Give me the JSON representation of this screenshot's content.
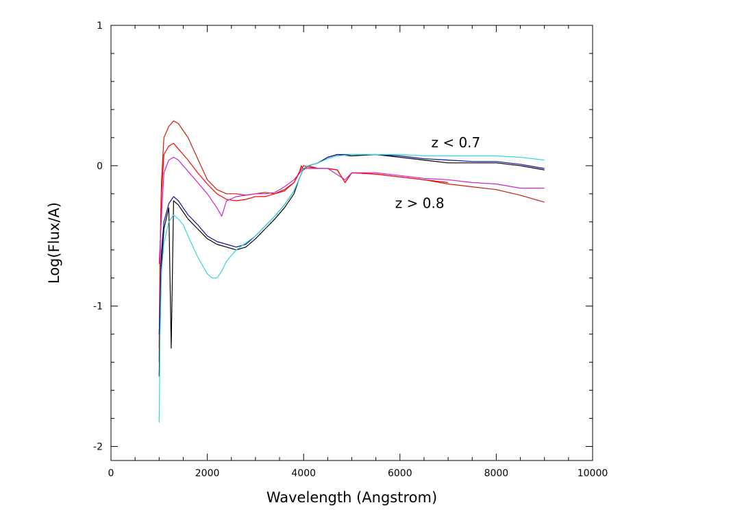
{
  "chart_data": {
    "type": "line",
    "title": "",
    "xlabel": "Wavelength (Angstrom)",
    "ylabel": "Log(Flux/A)",
    "xlim": [
      0,
      10000
    ],
    "ylim": [
      -2.1,
      1.0
    ],
    "x_ticks": [
      0,
      2000,
      4000,
      6000,
      8000,
      10000
    ],
    "x_tick_labels": [
      "0",
      "2000",
      "4000",
      "6000",
      "8000",
      "10000"
    ],
    "y_ticks": [
      -2,
      -1,
      0,
      1
    ],
    "y_tick_labels": [
      "-2",
      "-1",
      "0",
      "1"
    ],
    "grid": false,
    "legend": "none",
    "annotations": [
      {
        "text": "z < 0.7",
        "x": 6650,
        "y": 0.13
      },
      {
        "text": "z > 0.8",
        "x": 5900,
        "y": -0.3
      }
    ],
    "series": [
      {
        "color": "#c81e0a",
        "x": [
          1000,
          1020,
          1030,
          1050,
          1100,
          1200,
          1300,
          1400,
          1500,
          1600,
          1800,
          2000,
          2200,
          2400,
          2600,
          2800,
          3000,
          3200,
          3400,
          3600,
          3800,
          3900,
          3950,
          4000,
          4100,
          4300,
          4500,
          4700,
          4860,
          5000,
          5500,
          6000,
          6500,
          7000,
          7500,
          8000,
          8500,
          9000
        ],
        "y": [
          -1.4,
          -0.75,
          -0.4,
          -0.1,
          0.2,
          0.28,
          0.32,
          0.3,
          0.25,
          0.2,
          0.05,
          -0.1,
          -0.17,
          -0.2,
          -0.2,
          -0.21,
          -0.2,
          -0.19,
          -0.2,
          -0.17,
          -0.12,
          -0.06,
          0.0,
          -0.03,
          0.0,
          -0.02,
          -0.02,
          -0.03,
          -0.12,
          -0.05,
          -0.06,
          -0.08,
          -0.1,
          -0.13,
          -0.15,
          -0.17,
          -0.21,
          -0.26
        ]
      },
      {
        "color": "#ff0000",
        "x": [
          1000,
          1020,
          1050,
          1100,
          1200,
          1300,
          1400,
          1500,
          1600,
          1800,
          2000,
          2200,
          2400,
          2600,
          2800,
          3000,
          3200,
          3400,
          3600,
          3800,
          3900,
          4000,
          4100,
          4300,
          4500,
          4700,
          4860,
          5000,
          5500,
          6000,
          6500,
          7000
        ],
        "y": [
          -1.3,
          -0.6,
          -0.2,
          0.08,
          0.14,
          0.16,
          0.12,
          0.08,
          0.04,
          -0.05,
          -0.13,
          -0.2,
          -0.24,
          -0.25,
          -0.24,
          -0.22,
          -0.22,
          -0.2,
          -0.18,
          -0.12,
          -0.05,
          0.0,
          -0.01,
          -0.02,
          -0.02,
          -0.03,
          -0.12,
          -0.05,
          -0.06,
          -0.08,
          -0.1,
          -0.12
        ]
      },
      {
        "color": "#cc22cc",
        "x": [
          1000,
          1050,
          1100,
          1200,
          1300,
          1400,
          1500,
          1600,
          1800,
          2000,
          2200,
          2300,
          2400,
          2600,
          2800,
          3000,
          3200,
          3400,
          3600,
          3800,
          4000,
          4300,
          4500,
          4860,
          5000,
          5500,
          6000,
          6500,
          7000,
          7500,
          8000,
          8500,
          9000
        ],
        "y": [
          -0.7,
          -0.35,
          -0.05,
          0.04,
          0.06,
          0.04,
          0.0,
          -0.04,
          -0.12,
          -0.2,
          -0.3,
          -0.36,
          -0.25,
          -0.22,
          -0.21,
          -0.2,
          -0.2,
          -0.19,
          -0.15,
          -0.1,
          -0.02,
          -0.02,
          -0.02,
          -0.1,
          -0.05,
          -0.05,
          -0.07,
          -0.09,
          -0.1,
          -0.12,
          -0.13,
          -0.16,
          -0.16
        ]
      },
      {
        "color": "#000000",
        "x": [
          1000,
          1020,
          1050,
          1100,
          1200,
          1250,
          1300,
          1400,
          1500,
          1600,
          1800,
          2000,
          2200,
          2400,
          2600,
          2800,
          3000,
          3200,
          3400,
          3600,
          3800,
          3900,
          4000,
          4100,
          4300,
          4500,
          4700,
          5000,
          5500,
          6000,
          6500,
          7000,
          7500,
          8000,
          8500,
          9000
        ],
        "y": [
          -1.5,
          -1.1,
          -0.7,
          -0.45,
          -0.3,
          -1.3,
          -0.25,
          -0.28,
          -0.33,
          -0.38,
          -0.45,
          -0.52,
          -0.56,
          -0.58,
          -0.6,
          -0.58,
          -0.52,
          -0.45,
          -0.38,
          -0.3,
          -0.2,
          -0.1,
          -0.02,
          0.0,
          0.02,
          0.06,
          0.08,
          0.07,
          0.08,
          0.06,
          0.04,
          0.02,
          0.02,
          0.02,
          0.0,
          -0.03
        ]
      },
      {
        "color": "#1010a0",
        "x": [
          1000,
          1050,
          1100,
          1200,
          1300,
          1400,
          1500,
          1600,
          1800,
          2000,
          2200,
          2400,
          2600,
          2800,
          3000,
          3200,
          3400,
          3600,
          3800,
          4000,
          4100,
          4300,
          4500,
          4700,
          5000,
          5500,
          6000,
          6500,
          7000,
          7500,
          8000,
          8500,
          9000
        ],
        "y": [
          -1.2,
          -0.6,
          -0.4,
          -0.27,
          -0.22,
          -0.25,
          -0.3,
          -0.35,
          -0.42,
          -0.5,
          -0.54,
          -0.56,
          -0.58,
          -0.56,
          -0.5,
          -0.43,
          -0.36,
          -0.28,
          -0.18,
          -0.02,
          0.0,
          0.02,
          0.06,
          0.08,
          0.08,
          0.08,
          0.07,
          0.05,
          0.04,
          0.03,
          0.03,
          0.01,
          -0.02
        ]
      },
      {
        "color": "#30d8d8",
        "x": [
          1000,
          1020,
          1050,
          1100,
          1200,
          1300,
          1400,
          1500,
          1600,
          1800,
          2000,
          2100,
          2200,
          2300,
          2400,
          2600,
          2800,
          3000,
          3200,
          3400,
          3600,
          3800,
          4000,
          4100,
          4300,
          4500,
          4700,
          5000,
          5500,
          6000,
          6500,
          7000,
          7500,
          8000,
          8500,
          9000
        ],
        "y": [
          -1.83,
          -1.2,
          -0.75,
          -0.55,
          -0.4,
          -0.35,
          -0.38,
          -0.42,
          -0.5,
          -0.65,
          -0.77,
          -0.8,
          -0.8,
          -0.75,
          -0.68,
          -0.6,
          -0.55,
          -0.5,
          -0.43,
          -0.36,
          -0.28,
          -0.18,
          -0.02,
          0.0,
          0.02,
          0.05,
          0.07,
          0.08,
          0.08,
          0.08,
          0.07,
          0.07,
          0.07,
          0.07,
          0.06,
          0.04
        ]
      }
    ]
  }
}
